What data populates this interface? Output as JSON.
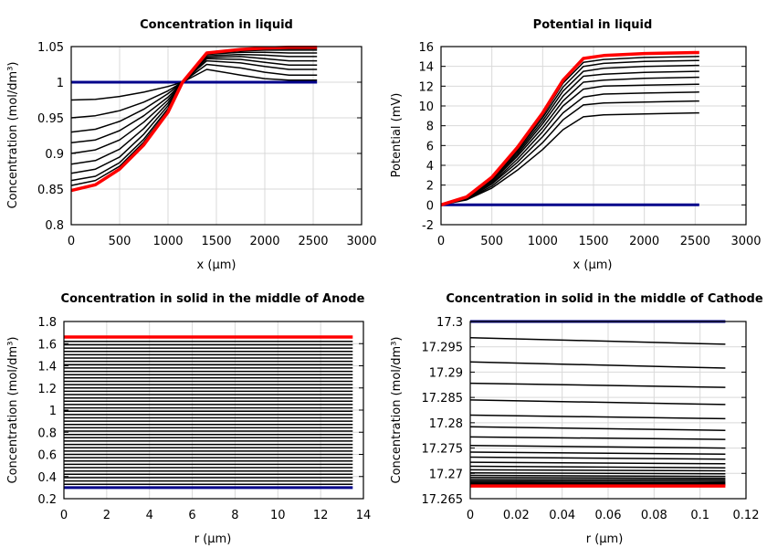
{
  "chart_data": [
    {
      "type": "line",
      "title": "Concentration in liquid",
      "xlabel": "x (µm)",
      "ylabel": "Concentration (mol/dm³)",
      "xlim": [
        0,
        3000
      ],
      "ylim": [
        0.8,
        1.05
      ],
      "xticks": [
        "0",
        "500",
        "1000",
        "1500",
        "2000",
        "2500",
        "3000"
      ],
      "yticks": [
        "0.8",
        "0.85",
        "0.9",
        "0.95",
        "1",
        "1.05"
      ],
      "grid": true,
      "x": [
        0,
        250,
        500,
        750,
        1000,
        1150,
        1400,
        1750,
        2000,
        2250,
        2540
      ],
      "initial": {
        "color": "#00008b",
        "values": [
          1,
          1,
          1,
          1,
          1,
          1,
          1,
          1,
          1,
          1,
          1
        ]
      },
      "final": {
        "color": "#ff0000",
        "values": [
          0.848,
          0.856,
          0.878,
          0.912,
          0.958,
          1.0,
          1.041,
          1.046,
          1.048,
          1.049,
          1.049
        ]
      },
      "series": [
        [
          0.975,
          0.976,
          0.98,
          0.986,
          0.994,
          1.0,
          1.018,
          1.01,
          1.005,
          1.003,
          1.003
        ],
        [
          0.95,
          0.953,
          0.96,
          0.972,
          0.988,
          1.0,
          1.025,
          1.02,
          1.014,
          1.01,
          1.01
        ],
        [
          0.93,
          0.934,
          0.945,
          0.962,
          0.984,
          1.0,
          1.03,
          1.027,
          1.022,
          1.018,
          1.018
        ],
        [
          0.915,
          0.919,
          0.932,
          0.953,
          0.979,
          1.0,
          1.033,
          1.032,
          1.028,
          1.024,
          1.024
        ],
        [
          0.9,
          0.905,
          0.919,
          0.944,
          0.975,
          1.0,
          1.035,
          1.036,
          1.033,
          1.03,
          1.03
        ],
        [
          0.885,
          0.89,
          0.906,
          0.935,
          0.971,
          1.0,
          1.037,
          1.039,
          1.038,
          1.036,
          1.036
        ],
        [
          0.872,
          0.878,
          0.895,
          0.927,
          0.967,
          1.0,
          1.039,
          1.042,
          1.042,
          1.041,
          1.041
        ],
        [
          0.862,
          0.868,
          0.887,
          0.92,
          0.963,
          1.0,
          1.04,
          1.044,
          1.045,
          1.045,
          1.045
        ],
        [
          0.855,
          0.862,
          0.882,
          0.916,
          0.96,
          1.0,
          1.04,
          1.045,
          1.047,
          1.047,
          1.047
        ]
      ]
    },
    {
      "type": "line",
      "title": "Potential in liquid",
      "xlabel": "x (µm)",
      "ylabel": "Potential (mV)",
      "xlim": [
        0,
        3000
      ],
      "ylim": [
        -2,
        16
      ],
      "xticks": [
        "0",
        "500",
        "1000",
        "1500",
        "2000",
        "2500",
        "3000"
      ],
      "yticks": [
        "-2",
        "0",
        "2",
        "4",
        "6",
        "8",
        "10",
        "12",
        "14",
        "16"
      ],
      "grid": true,
      "x": [
        0,
        250,
        500,
        750,
        1000,
        1200,
        1400,
        1600,
        2000,
        2540
      ],
      "initial": {
        "color": "#00008b",
        "values": [
          0,
          0,
          0,
          0,
          0,
          0,
          0,
          0,
          0,
          0
        ]
      },
      "final": {
        "color": "#ff0000",
        "values": [
          0,
          0.8,
          2.8,
          5.8,
          9.3,
          12.6,
          14.8,
          15.1,
          15.3,
          15.4
        ]
      },
      "series": [
        [
          0,
          0.5,
          1.7,
          3.5,
          5.6,
          7.6,
          8.9,
          9.1,
          9.2,
          9.3
        ],
        [
          0,
          0.55,
          1.9,
          3.95,
          6.3,
          8.6,
          10.1,
          10.3,
          10.4,
          10.5
        ],
        [
          0,
          0.6,
          2.1,
          4.3,
          6.9,
          9.3,
          10.9,
          11.2,
          11.3,
          11.4
        ],
        [
          0,
          0.63,
          2.2,
          4.6,
          7.4,
          10.0,
          11.7,
          12.0,
          12.1,
          12.2
        ],
        [
          0,
          0.67,
          2.35,
          4.9,
          7.8,
          10.5,
          12.4,
          12.6,
          12.8,
          12.9
        ],
        [
          0,
          0.7,
          2.45,
          5.1,
          8.2,
          11.0,
          13.0,
          13.2,
          13.4,
          13.5
        ],
        [
          0,
          0.73,
          2.55,
          5.3,
          8.5,
          11.5,
          13.5,
          13.8,
          14.0,
          14.1
        ],
        [
          0,
          0.76,
          2.65,
          5.5,
          8.8,
          11.9,
          14.0,
          14.3,
          14.5,
          14.6
        ],
        [
          0,
          0.78,
          2.72,
          5.65,
          9.05,
          12.3,
          14.4,
          14.7,
          14.9,
          15.0
        ]
      ]
    },
    {
      "type": "line",
      "title": "Concentration in solid in the middle of Anode",
      "xlabel": "r (µm)",
      "ylabel": "Concentration (mol/dm³)",
      "xlim": [
        0,
        14
      ],
      "ylim": [
        0.2,
        1.8
      ],
      "xticks": [
        "0",
        "2",
        "4",
        "6",
        "8",
        "10",
        "12",
        "14"
      ],
      "yticks": [
        "0.2",
        "0.4",
        "0.6",
        "0.8",
        "1",
        "1.2",
        "1.4",
        "1.6",
        "1.8"
      ],
      "grid": true,
      "x": [
        0,
        13.5
      ],
      "initial": {
        "color": "#00008b",
        "values": [
          0.3,
          0.3
        ]
      },
      "final": {
        "color": "#ff0000",
        "values": [
          1.66,
          1.66
        ]
      },
      "levels": [
        0.33,
        0.36,
        0.39,
        0.42,
        0.45,
        0.48,
        0.51,
        0.54,
        0.57,
        0.6,
        0.63,
        0.66,
        0.69,
        0.72,
        0.75,
        0.78,
        0.81,
        0.84,
        0.87,
        0.9,
        0.93,
        0.96,
        0.99,
        1.02,
        1.05,
        1.08,
        1.11,
        1.14,
        1.17,
        1.2,
        1.23,
        1.26,
        1.29,
        1.32,
        1.35,
        1.38,
        1.41,
        1.44,
        1.47,
        1.5,
        1.53,
        1.56,
        1.59,
        1.62
      ]
    },
    {
      "type": "line",
      "title": "Concentration in solid in the middle of Cathode",
      "xlabel": "r (µm)",
      "ylabel": "Concentration (mol/dm³)",
      "xlim": [
        0,
        0.12
      ],
      "ylim": [
        17.265,
        17.3
      ],
      "xticks": [
        "0",
        "0.02",
        "0.04",
        "0.06",
        "0.08",
        "0.1",
        "0.12"
      ],
      "yticks": [
        "17.265",
        "17.27",
        "17.275",
        "17.28",
        "17.285",
        "17.29",
        "17.295",
        "17.3"
      ],
      "grid": true,
      "x": [
        0,
        0.111
      ],
      "initial": {
        "color": "#00008b",
        "values": [
          17.3,
          17.3
        ]
      },
      "final": {
        "color": "#ff0000",
        "values": [
          17.2675,
          17.2675
        ]
      },
      "series": [
        [
          17.2968,
          17.2955
        ],
        [
          17.292,
          17.2908
        ],
        [
          17.2878,
          17.287
        ],
        [
          17.2845,
          17.2836
        ],
        [
          17.2815,
          17.2808
        ],
        [
          17.2792,
          17.2785
        ],
        [
          17.2772,
          17.2767
        ],
        [
          17.2755,
          17.275
        ],
        [
          17.2742,
          17.2738
        ],
        [
          17.2732,
          17.2728
        ],
        [
          17.2722,
          17.2719
        ],
        [
          17.2714,
          17.2711
        ],
        [
          17.2707,
          17.2705
        ],
        [
          17.2701,
          17.2699
        ],
        [
          17.2696,
          17.2694
        ],
        [
          17.2692,
          17.269
        ],
        [
          17.2688,
          17.2687
        ],
        [
          17.2685,
          17.2684
        ],
        [
          17.2682,
          17.2681
        ],
        [
          17.268,
          17.2679
        ],
        [
          17.2678,
          17.2677
        ]
      ]
    }
  ]
}
